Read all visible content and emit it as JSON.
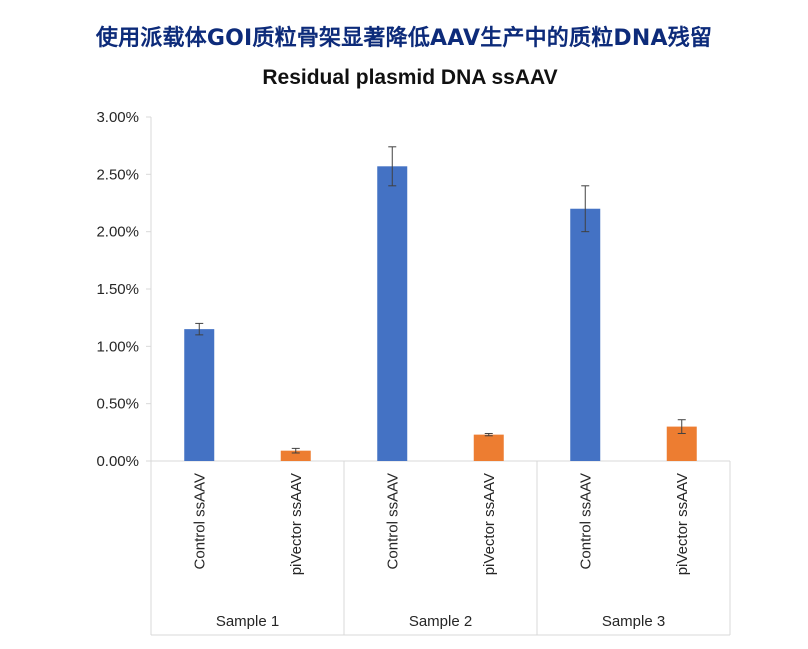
{
  "banner_title": "使用派载体GOI质粒骨架显著降低AAV生产中的质粒DNA残留",
  "chart_data": {
    "type": "bar",
    "title": "Residual plasmid DNA ssAAV",
    "xlabel": "",
    "ylabel": "",
    "ylim": [
      0,
      0.03
    ],
    "yticks": [
      "0.00%",
      "0.50%",
      "1.00%",
      "1.50%",
      "2.00%",
      "2.50%",
      "3.00%"
    ],
    "grid": false,
    "legend": "none",
    "groups": [
      {
        "name": "Sample 1",
        "bars": [
          {
            "label": "Control ssAAV",
            "value": 0.0115,
            "error": 0.0005,
            "color": "#4472c4"
          },
          {
            "label": "piVector ssAAV",
            "value": 0.0009,
            "error": 0.0002,
            "color": "#ed7d31"
          }
        ]
      },
      {
        "name": "Sample 2",
        "bars": [
          {
            "label": "Control ssAAV",
            "value": 0.0257,
            "error": 0.0017,
            "color": "#4472c4"
          },
          {
            "label": "piVector ssAAV",
            "value": 0.0023,
            "error": 0.0001,
            "color": "#ed7d31"
          }
        ]
      },
      {
        "name": "Sample 3",
        "bars": [
          {
            "label": "Control ssAAV",
            "value": 0.022,
            "error": 0.002,
            "color": "#4472c4"
          },
          {
            "label": "piVector ssAAV",
            "value": 0.003,
            "error": 0.0006,
            "color": "#ed7d31"
          }
        ]
      }
    ]
  }
}
